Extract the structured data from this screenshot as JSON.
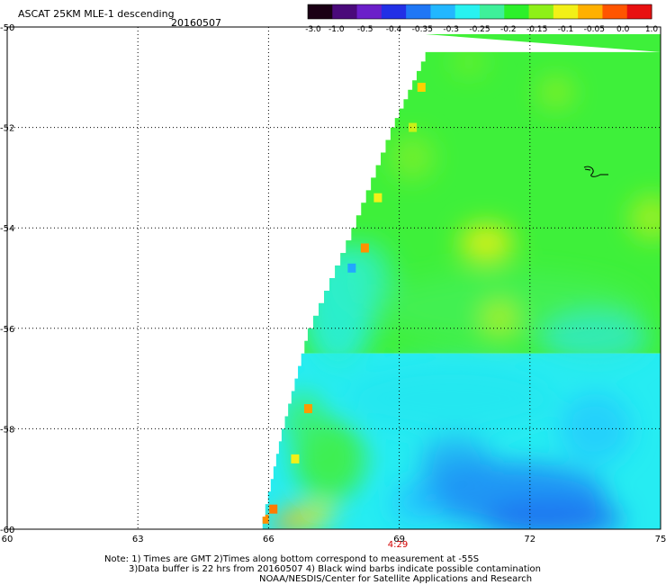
{
  "header": {
    "title": "ASCAT 25KM MLE-1 descending",
    "date": "20160507"
  },
  "colorbar": {
    "labels": [
      "-3.0",
      "-1.0",
      "-0.5",
      "-0.4",
      "-0.35",
      "-0.3",
      "-0.25",
      "-0.2",
      "-0.15",
      "-0.1",
      "-0.05",
      "0.0",
      "1.0"
    ],
    "colors": [
      "#1a0014",
      "#4a0a7a",
      "#6b1fc9",
      "#2230e6",
      "#1f77f5",
      "#22b7ff",
      "#28f2f0",
      "#3ef09a",
      "#2cf02a",
      "#8ef018",
      "#f2f018",
      "#ffb000",
      "#ff5500",
      "#e81010"
    ]
  },
  "chart_data": {
    "type": "heatmap",
    "title": "ASCAT 25KM MLE-1 descending",
    "date": "20160507",
    "x_ticks": [
      "60",
      "63",
      "66",
      "69",
      "72",
      "75"
    ],
    "y_ticks": [
      "-50",
      "-52",
      "-54",
      "-56",
      "-58",
      "-60"
    ],
    "xlim": [
      60,
      75
    ],
    "ylim": [
      -60,
      -50
    ],
    "grid": true,
    "time_label": "4:29",
    "time_label_color": "#d40000",
    "swath_west_edge": [
      [
        -50.5,
        69.6
      ],
      [
        -52.0,
        68.8
      ],
      [
        -54.0,
        67.9
      ],
      [
        -56.0,
        66.9
      ],
      [
        -58.0,
        66.3
      ],
      [
        -60.0,
        65.8
      ]
    ],
    "value_regions": [
      {
        "description_value": "-0.2 to -0.15",
        "lat": [
          -50,
          -56.5
        ],
        "color": "#33ee33"
      },
      {
        "description_value": "-0.1 to -0.05",
        "lat": [
          -54.0,
          -54.5
        ],
        "lon": [
          70.8,
          71.4
        ],
        "color": "#c8f018"
      },
      {
        "description_value": "-0.3 to -0.25",
        "lat": [
          -56.5,
          -60
        ],
        "color": "#22eef0"
      },
      {
        "description_value": "-0.35 to -0.3",
        "lat": [
          -59.0,
          -60
        ],
        "lon": [
          70,
          73
        ],
        "color": "#1f8cf5"
      },
      {
        "description_value": "0.0 to 1.0",
        "lat": [
          -59.5,
          -60
        ],
        "lon": [
          66,
          67
        ],
        "color": "#ffb000"
      }
    ]
  },
  "footer": {
    "line1": "Note: 1) Times are GMT 2)Times along bottom correspond to measurement at -55S",
    "line2": "3)Data buffer is 22 hrs from 20160507 4) Black wind barbs indicate possible contamination",
    "line3": "NOAA/NESDIS/Center for Satellite Applications and Research"
  }
}
